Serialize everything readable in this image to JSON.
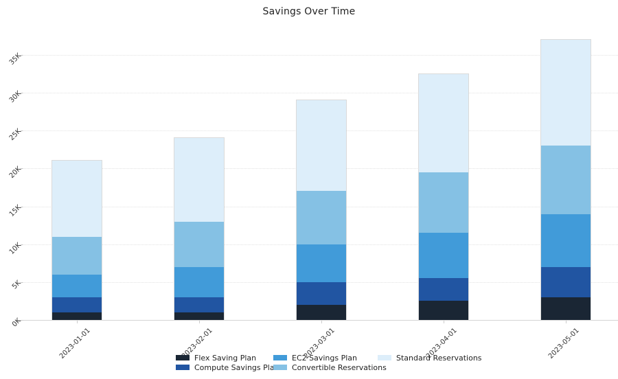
{
  "chart_data": {
    "type": "bar",
    "stacked": true,
    "title": "Savings Over Time",
    "categories": [
      "2023-01-01",
      "2023-02-01",
      "2023-03-01",
      "2023-04-01",
      "2023-05-01"
    ],
    "series": [
      {
        "name": "Flex Saving Plan",
        "color": "#1a2634",
        "values": [
          1000,
          1000,
          2000,
          2500,
          3000
        ]
      },
      {
        "name": "Compute Savings Plan",
        "color": "#2155a2",
        "values": [
          2000,
          2000,
          3000,
          3000,
          4000
        ]
      },
      {
        "name": "EC2 Savings Plan",
        "color": "#419bd9",
        "values": [
          3000,
          4000,
          5000,
          6000,
          7000
        ]
      },
      {
        "name": "Convertible Reservations",
        "color": "#85c1e4",
        "values": [
          5000,
          6000,
          7000,
          8000,
          9000
        ]
      },
      {
        "name": "Standard Reservations",
        "color": "#ddeefa",
        "values": [
          10000,
          11000,
          12000,
          13000,
          14000
        ]
      }
    ],
    "totals": [
      21000,
      24000,
      29000,
      32500,
      37000
    ],
    "y_ticks": [
      {
        "label": "0K",
        "value": 0
      },
      {
        "label": "5K",
        "value": 5000
      },
      {
        "label": "10K",
        "value": 10000
      },
      {
        "label": "15K",
        "value": 15000
      },
      {
        "label": "20K",
        "value": 20000
      },
      {
        "label": "25K",
        "value": 25000
      },
      {
        "label": "30K",
        "value": 30000
      },
      {
        "label": "35K",
        "value": 35000
      }
    ],
    "ylim": [
      0,
      35000
    ],
    "xlabel": "",
    "ylabel": "",
    "grid": "horizontal-dotted",
    "legend_position": "bottom-center",
    "colors": {
      "gridline": "#e2e2e2",
      "axis_line": "#d4d4d4",
      "tick_text": "#333333",
      "title_text": "#1f1f1f"
    }
  }
}
